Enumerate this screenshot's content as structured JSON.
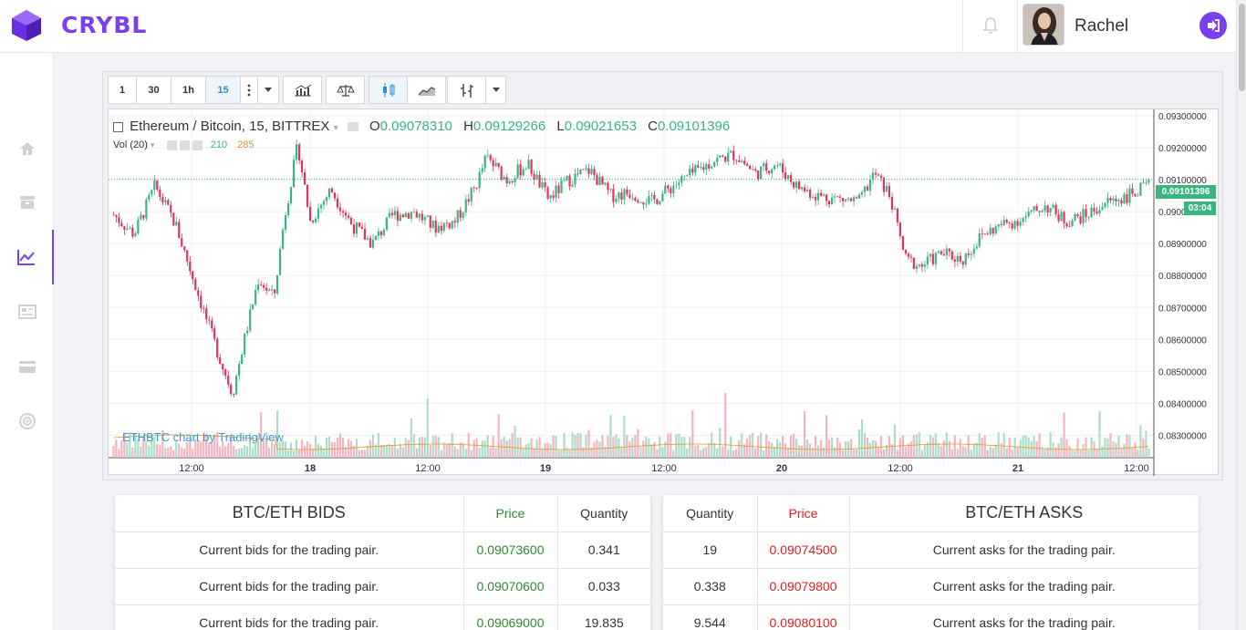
{
  "app": {
    "name": "CRYBL"
  },
  "user": {
    "name": "Rachel"
  },
  "toolbar": {
    "intervals": [
      "1",
      "30",
      "1h",
      "15"
    ],
    "active_interval": "15"
  },
  "chart": {
    "legend_title": "Ethereum / Bitcoin, 15, BITTREX",
    "o_label": "O",
    "o_value": "0.09078310",
    "h_label": "H",
    "h_value": "0.09129266",
    "l_label": "L",
    "l_value": "0.09021653",
    "c_label": "C",
    "c_value": "0.09101396",
    "vol_label": "Vol (20)",
    "vol_value_1": "210",
    "vol_value_2": "285",
    "last_price": "0.09101396",
    "countdown": "03:04",
    "watermark": "ETHBTC chart by TradingView",
    "colors": {
      "up": "#3bb580",
      "down": "#e0345a",
      "accent": "#7a3ff2"
    }
  },
  "chart_data": {
    "type": "candlestick",
    "y_ticks": [
      "0.09300000",
      "0.09200000",
      "0.09100000",
      "0.09000000",
      "0.08900000",
      "0.08800000",
      "0.08700000",
      "0.08600000",
      "0.08500000",
      "0.08400000",
      "0.08300000"
    ],
    "ylim": [
      0.0823,
      0.0932
    ],
    "x_ticks": [
      "12:00",
      "18",
      "12:00",
      "19",
      "12:00",
      "20",
      "12:00",
      "21",
      "12:00"
    ],
    "approx_close_path": [
      {
        "x": 0.0,
        "y": 0.0899
      },
      {
        "x": 0.02,
        "y": 0.0893
      },
      {
        "x": 0.04,
        "y": 0.0908
      },
      {
        "x": 0.06,
        "y": 0.0896
      },
      {
        "x": 0.075,
        "y": 0.0881
      },
      {
        "x": 0.09,
        "y": 0.0866
      },
      {
        "x": 0.105,
        "y": 0.0852
      },
      {
        "x": 0.115,
        "y": 0.0843
      },
      {
        "x": 0.125,
        "y": 0.0858
      },
      {
        "x": 0.14,
        "y": 0.0879
      },
      {
        "x": 0.155,
        "y": 0.0873
      },
      {
        "x": 0.165,
        "y": 0.0898
      },
      {
        "x": 0.178,
        "y": 0.0921
      },
      {
        "x": 0.19,
        "y": 0.0897
      },
      {
        "x": 0.21,
        "y": 0.0907
      },
      {
        "x": 0.23,
        "y": 0.0896
      },
      {
        "x": 0.25,
        "y": 0.089
      },
      {
        "x": 0.27,
        "y": 0.0899
      },
      {
        "x": 0.29,
        "y": 0.09
      },
      {
        "x": 0.31,
        "y": 0.0895
      },
      {
        "x": 0.33,
        "y": 0.0897
      },
      {
        "x": 0.35,
        "y": 0.0908
      },
      {
        "x": 0.36,
        "y": 0.0917
      },
      {
        "x": 0.38,
        "y": 0.091
      },
      {
        "x": 0.4,
        "y": 0.0915
      },
      {
        "x": 0.42,
        "y": 0.0904
      },
      {
        "x": 0.44,
        "y": 0.091
      },
      {
        "x": 0.46,
        "y": 0.0913
      },
      {
        "x": 0.48,
        "y": 0.0905
      },
      {
        "x": 0.5,
        "y": 0.0906
      },
      {
        "x": 0.52,
        "y": 0.0903
      },
      {
        "x": 0.54,
        "y": 0.0908
      },
      {
        "x": 0.56,
        "y": 0.0912
      },
      {
        "x": 0.58,
        "y": 0.0916
      },
      {
        "x": 0.6,
        "y": 0.0918
      },
      {
        "x": 0.62,
        "y": 0.0912
      },
      {
        "x": 0.64,
        "y": 0.0915
      },
      {
        "x": 0.66,
        "y": 0.0908
      },
      {
        "x": 0.68,
        "y": 0.0905
      },
      {
        "x": 0.7,
        "y": 0.0904
      },
      {
        "x": 0.72,
        "y": 0.0903
      },
      {
        "x": 0.735,
        "y": 0.0912
      },
      {
        "x": 0.75,
        "y": 0.0905
      },
      {
        "x": 0.765,
        "y": 0.0885
      },
      {
        "x": 0.78,
        "y": 0.0883
      },
      {
        "x": 0.8,
        "y": 0.0887
      },
      {
        "x": 0.82,
        "y": 0.0885
      },
      {
        "x": 0.84,
        "y": 0.0893
      },
      {
        "x": 0.86,
        "y": 0.0896
      },
      {
        "x": 0.88,
        "y": 0.0898
      },
      {
        "x": 0.9,
        "y": 0.0902
      },
      {
        "x": 0.92,
        "y": 0.0897
      },
      {
        "x": 0.94,
        "y": 0.0899
      },
      {
        "x": 0.96,
        "y": 0.0903
      },
      {
        "x": 0.98,
        "y": 0.0905
      },
      {
        "x": 1.0,
        "y": 0.0908
      }
    ]
  },
  "bids": {
    "title": "BTC/ETH BIDS",
    "price_header": "Price",
    "qty_header": "Quantity",
    "rows": [
      {
        "desc": "Current bids for the trading pair.",
        "price": "0.09073600",
        "qty": "0.341"
      },
      {
        "desc": "Current bids for the trading pair.",
        "price": "0.09070600",
        "qty": "0.033"
      },
      {
        "desc": "Current bids for the trading pair.",
        "price": "0.09069000",
        "qty": "19.835"
      }
    ]
  },
  "asks": {
    "title": "BTC/ETH ASKS",
    "price_header": "Price",
    "qty_header": "Quantity",
    "rows": [
      {
        "desc": "Current asks for the trading pair.",
        "price": "0.09074500",
        "qty": "19"
      },
      {
        "desc": "Current asks for the trading pair.",
        "price": "0.09079800",
        "qty": "0.338"
      },
      {
        "desc": "Current asks for the trading pair.",
        "price": "0.09080100",
        "qty": "9.544"
      }
    ]
  }
}
